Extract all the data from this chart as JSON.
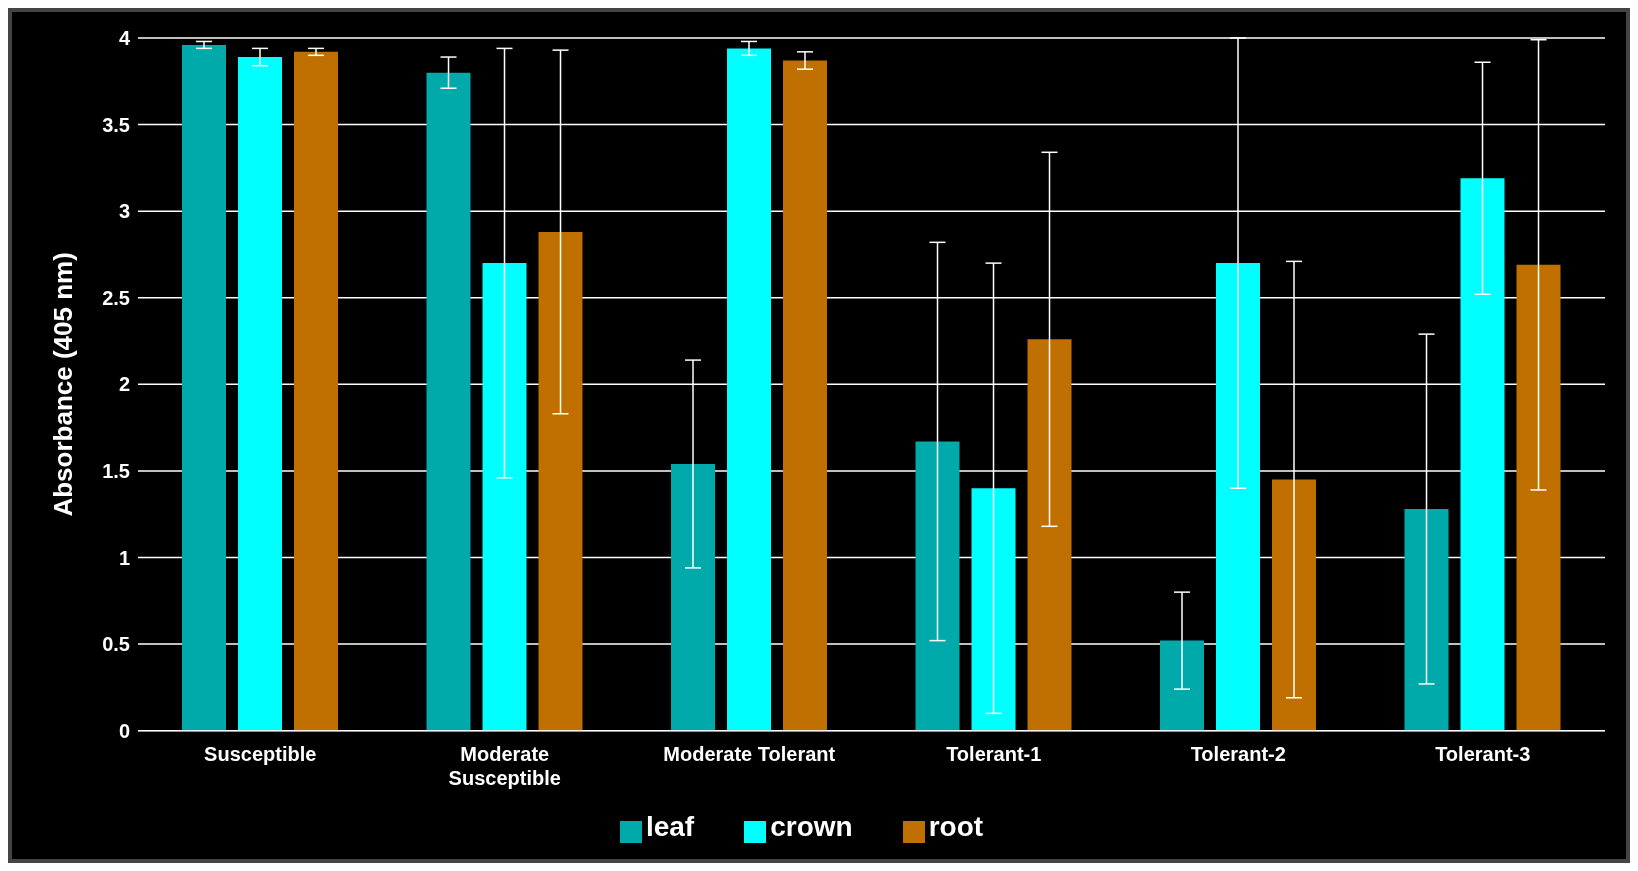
{
  "chart_data": {
    "type": "bar",
    "ylabel": "Absorbance (405 nm)",
    "categories": [
      "Susceptible",
      "Moderate\nSusceptible",
      "Moderate Tolerant",
      "Tolerant-1",
      "Tolerant-2",
      "Tolerant-3"
    ],
    "series": [
      {
        "name": "leaf",
        "color": "#00aaaa",
        "values": [
          3.96,
          3.8,
          1.54,
          1.67,
          0.52,
          1.28
        ],
        "errors": [
          0.02,
          0.09,
          0.6,
          1.15,
          0.28,
          1.01
        ]
      },
      {
        "name": "crown",
        "color": "#00ffff",
        "values": [
          3.89,
          2.7,
          3.94,
          1.4,
          2.7,
          3.19
        ],
        "errors": [
          0.05,
          1.24,
          0.04,
          1.3,
          1.3,
          0.67
        ]
      },
      {
        "name": "root",
        "color": "#c07000",
        "values": [
          3.92,
          2.88,
          3.87,
          2.26,
          1.45,
          2.69
        ],
        "errors": [
          0.02,
          1.05,
          0.05,
          1.08,
          1.26,
          1.3
        ]
      }
    ],
    "ylim": [
      0,
      4
    ],
    "yticks": [
      0,
      0.5,
      1,
      1.5,
      2,
      2.5,
      3,
      3.5,
      4
    ],
    "grid": "y",
    "legend": "bottom"
  }
}
